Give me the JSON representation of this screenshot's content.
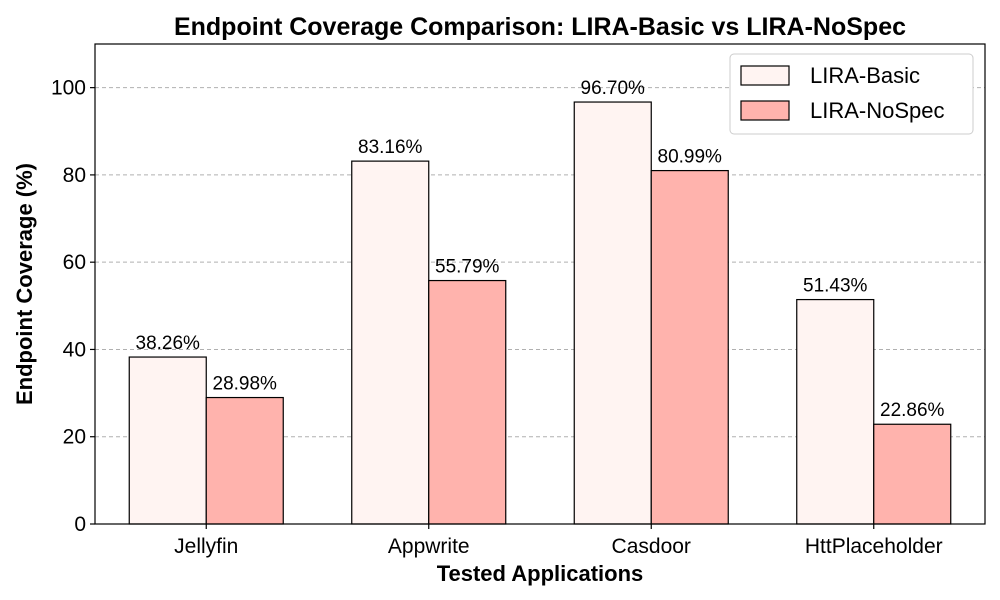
{
  "chart_data": {
    "type": "bar",
    "title": "Endpoint Coverage Comparison: LIRA-Basic vs LIRA-NoSpec",
    "xlabel": "Tested Applications",
    "ylabel": "Endpoint Coverage (%)",
    "categories": [
      "Jellyfin",
      "Appwrite",
      "Casdoor",
      "HttPlaceholder"
    ],
    "series": [
      {
        "name": "LIRA-Basic",
        "values": [
          38.26,
          83.16,
          96.7,
          51.43
        ],
        "labels": [
          "38.26%",
          "83.16%",
          "96.70%",
          "51.43%"
        ],
        "color": "#fff4f2"
      },
      {
        "name": "LIRA-NoSpec",
        "values": [
          28.98,
          55.79,
          80.99,
          22.86
        ],
        "labels": [
          "28.98%",
          "55.79%",
          "80.99%",
          "22.86%"
        ],
        "color": "#ffb3ad"
      }
    ],
    "ylim": [
      0,
      110
    ],
    "yticks": [
      0,
      20,
      40,
      60,
      80,
      100
    ],
    "ytick_labels": [
      "0",
      "20",
      "40",
      "60",
      "80",
      "100"
    ],
    "grid": "y-dashed",
    "legend_position": "top-right"
  }
}
